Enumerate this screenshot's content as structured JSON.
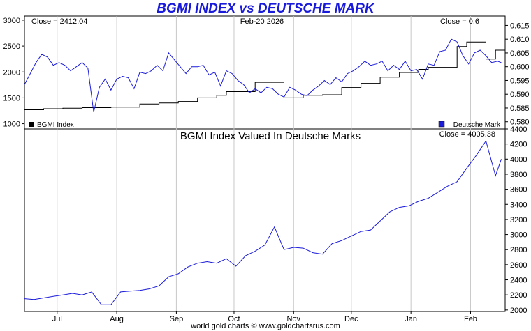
{
  "title": "BGMI INDEX vs DEUTSCHE MARK",
  "footer": "world gold charts © www.goldchartsrus.com",
  "colors": {
    "index": "#000000",
    "currency": "#1a1adb",
    "ratio": "#1a1adb",
    "title": "#1a1adb",
    "frame": "#000000"
  },
  "chart_data": [
    {
      "type": "line",
      "subtitle": "",
      "date_label": "Feb-20  2026",
      "left_annotation": "Close = 2412.04",
      "right_annotation": "Close = 0.6",
      "x_ticks": [
        "Jul",
        "Aug",
        "Sep",
        "Oct",
        "Nov",
        "Dec",
        "Jan",
        "Feb"
      ],
      "x_tick_days": [
        17,
        48,
        79,
        109,
        140,
        170,
        201,
        232
      ],
      "x_range": [
        0,
        250
      ],
      "left_axis": {
        "ylim": [
          900,
          3080
        ],
        "ticks": [
          1000,
          1500,
          2000,
          2500,
          3000
        ]
      },
      "right_axis": {
        "ylim": [
          0.5774,
          0.6184
        ],
        "ticks": [
          "0.580",
          "0.585",
          "0.590",
          "0.595",
          "0.600",
          "0.605",
          "0.610",
          "0.615"
        ]
      },
      "legend": {
        "placement": "bottom",
        "left": "BGMI Index",
        "right": "Deutsche Mark"
      },
      "series": [
        {
          "name": "BGMI Index",
          "axis": "left",
          "x": [
            0,
            10,
            20,
            30,
            40,
            45,
            50,
            60,
            70,
            80,
            90,
            95,
            100,
            105,
            115,
            120,
            125,
            135,
            140,
            145,
            150,
            155,
            165,
            175,
            185,
            195,
            205,
            210,
            215,
            225,
            230,
            235,
            240,
            245,
            250
          ],
          "values": [
            1270,
            1290,
            1300,
            1310,
            1310,
            1320,
            1320,
            1380,
            1400,
            1430,
            1500,
            1500,
            1550,
            1620,
            1620,
            1800,
            1800,
            1500,
            1500,
            1550,
            1550,
            1560,
            1700,
            1780,
            1900,
            1990,
            2050,
            2090,
            2090,
            2490,
            2580,
            2580,
            2250,
            2420,
            2410
          ]
        },
        {
          "name": "Deutsche Mark",
          "axis": "right",
          "x": [
            0,
            3,
            6,
            9,
            12,
            15,
            18,
            21,
            24,
            27,
            30,
            33,
            36,
            39,
            42,
            45,
            48,
            51,
            54,
            57,
            60,
            63,
            66,
            69,
            72,
            75,
            78,
            81,
            84,
            87,
            90,
            93,
            96,
            99,
            102,
            105,
            108,
            111,
            114,
            117,
            120,
            123,
            126,
            129,
            132,
            135,
            138,
            141,
            144,
            147,
            150,
            153,
            156,
            159,
            162,
            165,
            168,
            171,
            174,
            177,
            180,
            183,
            186,
            189,
            192,
            195,
            198,
            201,
            204,
            207,
            210,
            213,
            216,
            219,
            222,
            225,
            228,
            231,
            234,
            237,
            240,
            243,
            246,
            248
          ],
          "values": [
            0.5935,
            0.5975,
            0.6015,
            0.6045,
            0.6035,
            0.6005,
            0.6015,
            0.6005,
            0.5985,
            0.6,
            0.6015,
            0.5995,
            0.5835,
            0.5925,
            0.5955,
            0.5915,
            0.5955,
            0.5965,
            0.596,
            0.592,
            0.598,
            0.5975,
            0.5985,
            0.6005,
            0.5985,
            0.605,
            0.6025,
            0.6,
            0.5975,
            0.6,
            0.6,
            0.6005,
            0.597,
            0.598,
            0.593,
            0.5985,
            0.5975,
            0.595,
            0.5935,
            0.5905,
            0.592,
            0.5905,
            0.5925,
            0.592,
            0.59,
            0.589,
            0.5925,
            0.5915,
            0.59,
            0.5895,
            0.5915,
            0.593,
            0.595,
            0.5935,
            0.596,
            0.5945,
            0.5975,
            0.5985,
            0.6,
            0.602,
            0.6005,
            0.601,
            0.602,
            0.5985,
            0.6005,
            0.599,
            0.602,
            0.5985,
            0.599,
            0.5955,
            0.601,
            0.6005,
            0.6055,
            0.606,
            0.61,
            0.609,
            0.604,
            0.601,
            0.605,
            0.606,
            0.604,
            0.6015,
            0.602,
            0.6015
          ]
        }
      ]
    },
    {
      "type": "line",
      "title": "BGMI Index Valued In Deutsche Marks",
      "right_annotation": "Close = 4005.38",
      "x_range": [
        0,
        250
      ],
      "ylim": [
        1980,
        4400
      ],
      "y_ticks": [
        2000,
        2200,
        2400,
        2600,
        2800,
        3000,
        3200,
        3400,
        3600,
        3800,
        4000,
        4200,
        4400
      ],
      "series": [
        {
          "name": "",
          "x": [
            0,
            5,
            10,
            15,
            20,
            25,
            30,
            35,
            40,
            45,
            50,
            55,
            60,
            65,
            70,
            75,
            80,
            85,
            90,
            95,
            100,
            105,
            110,
            115,
            120,
            125,
            130,
            135,
            140,
            145,
            150,
            155,
            160,
            165,
            170,
            175,
            180,
            185,
            190,
            195,
            200,
            205,
            210,
            215,
            220,
            225,
            230,
            235,
            240,
            245,
            248
          ],
          "values": [
            2150,
            2140,
            2160,
            2180,
            2200,
            2220,
            2200,
            2240,
            2070,
            2070,
            2240,
            2250,
            2260,
            2280,
            2320,
            2440,
            2480,
            2570,
            2620,
            2640,
            2620,
            2680,
            2580,
            2720,
            2780,
            2860,
            3100,
            2800,
            2830,
            2820,
            2760,
            2740,
            2880,
            2920,
            2980,
            3040,
            3060,
            3180,
            3300,
            3360,
            3380,
            3440,
            3480,
            3560,
            3640,
            3700,
            3880,
            4050,
            4240,
            3780,
            4000
          ]
        }
      ]
    }
  ]
}
